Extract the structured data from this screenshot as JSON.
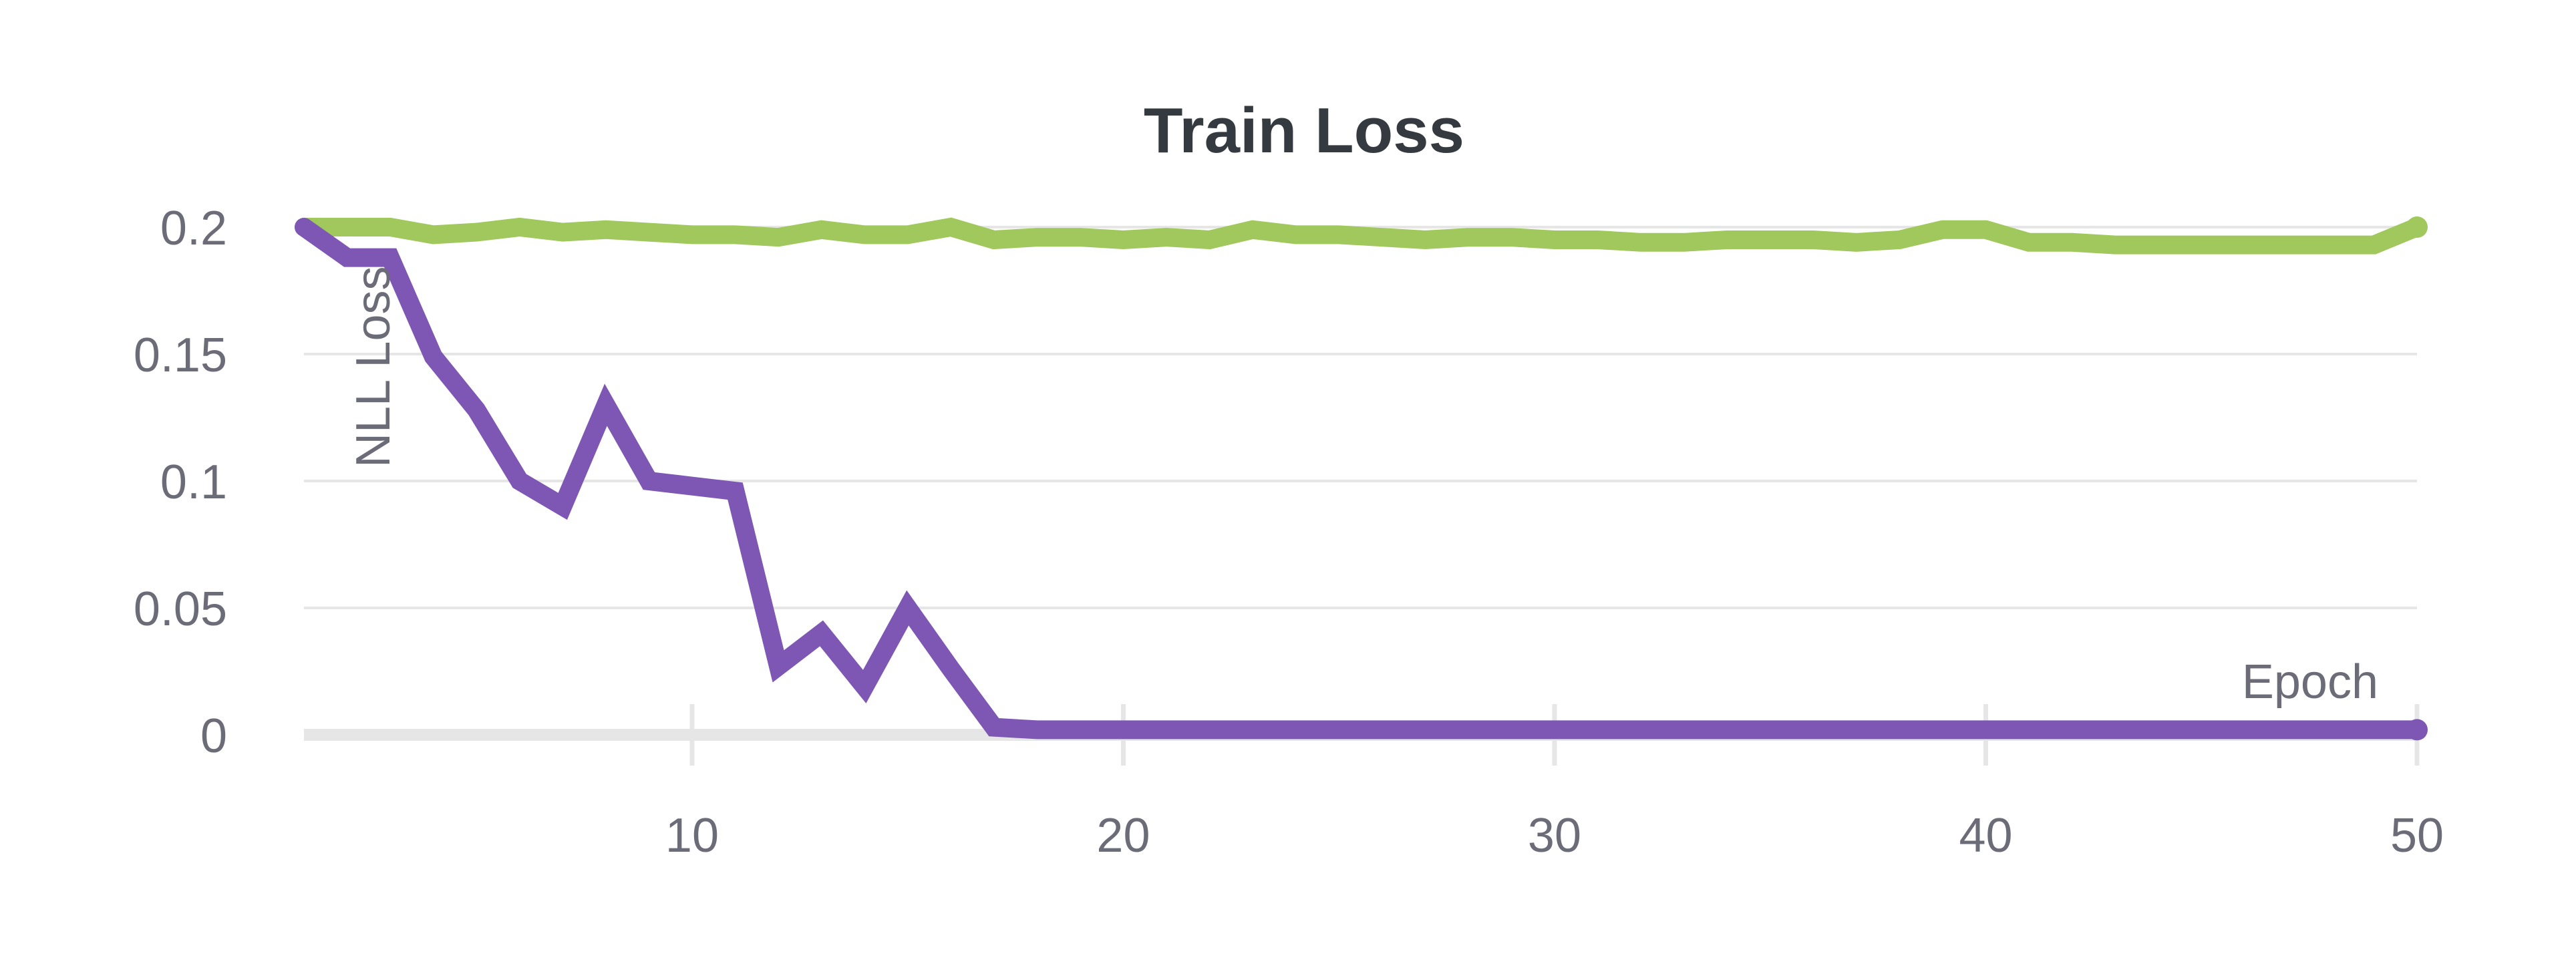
{
  "chart_data": {
    "type": "line",
    "title": "Train Loss",
    "xlabel": "Epoch",
    "ylabel": "NLL Loss",
    "xlim": [
      1,
      50
    ],
    "ylim": [
      0,
      0.2
    ],
    "x_ticks": [
      10,
      20,
      30,
      40,
      50
    ],
    "x_tick_labels": [
      "10",
      "20",
      "30",
      "40",
      "50"
    ],
    "y_ticks": [
      0,
      0.05,
      0.1,
      0.15,
      0.2
    ],
    "y_tick_labels": [
      "0",
      "0.05",
      "0.1",
      "0.15",
      "0.2"
    ],
    "grid": true,
    "x": [
      1,
      2,
      3,
      4,
      5,
      6,
      7,
      8,
      9,
      10,
      11,
      12,
      13,
      14,
      15,
      16,
      17,
      18,
      19,
      20,
      21,
      22,
      23,
      24,
      25,
      26,
      27,
      28,
      29,
      30,
      31,
      32,
      33,
      34,
      35,
      36,
      37,
      38,
      39,
      40,
      41,
      42,
      43,
      44,
      45,
      46,
      47,
      48,
      49,
      50
    ],
    "series": [
      {
        "color": "#a0c85c",
        "values": [
          0.2,
          0.2,
          0.2,
          0.197,
          0.198,
          0.2,
          0.198,
          0.199,
          0.198,
          0.197,
          0.197,
          0.196,
          0.199,
          0.197,
          0.197,
          0.2,
          0.195,
          0.196,
          0.196,
          0.195,
          0.196,
          0.195,
          0.199,
          0.197,
          0.197,
          0.196,
          0.195,
          0.196,
          0.196,
          0.195,
          0.195,
          0.194,
          0.194,
          0.195,
          0.195,
          0.195,
          0.194,
          0.195,
          0.199,
          0.199,
          0.194,
          0.194,
          0.193,
          0.193,
          0.193,
          0.193,
          0.193,
          0.193,
          0.193,
          0.2
        ]
      },
      {
        "color": "#7e57b5",
        "values": [
          0.2,
          0.188,
          0.188,
          0.149,
          0.128,
          0.1,
          0.09,
          0.13,
          0.1,
          0.098,
          0.096,
          0.027,
          0.04,
          0.019,
          0.05,
          0.026,
          0.003,
          0.002,
          0.002,
          0.002,
          0.002,
          0.002,
          0.002,
          0.002,
          0.002,
          0.002,
          0.002,
          0.002,
          0.002,
          0.002,
          0.002,
          0.002,
          0.002,
          0.002,
          0.002,
          0.002,
          0.002,
          0.002,
          0.002,
          0.002,
          0.002,
          0.002,
          0.002,
          0.002,
          0.002,
          0.002,
          0.002,
          0.002,
          0.002,
          0.002
        ]
      }
    ]
  }
}
